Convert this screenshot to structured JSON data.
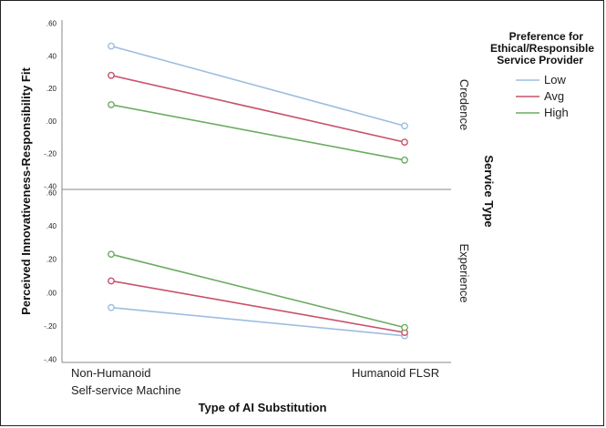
{
  "chart_data": {
    "type": "line",
    "x_title": "Type of AI Substitution",
    "y_title": "Perceived Innovativeness-Responsibility Fit",
    "categories": [
      "Non-Humanoid\nSelf-service Machine",
      "Humanoid FLSR"
    ],
    "panel_title": "Service Type",
    "legend": {
      "title": [
        "Preference for",
        "Ethical/Responsible",
        "Service Provider"
      ],
      "position": "top-right"
    },
    "ylim": [
      -0.42,
      0.62
    ],
    "yticks": [
      0.6,
      0.4,
      0.2,
      0.0,
      -0.2,
      -0.4
    ],
    "ytick_labels": [
      ".60",
      ".40",
      ".20",
      ".00",
      "-.20",
      "-.40"
    ],
    "grid": false,
    "colors": {
      "Low": "#9dbde0",
      "Avg": "#c8506a",
      "High": "#6cab62"
    },
    "panels": [
      {
        "label": "Credence",
        "series": [
          {
            "name": "Low",
            "values": [
              0.46,
              -0.03
            ]
          },
          {
            "name": "Avg",
            "values": [
              0.28,
              -0.13
            ]
          },
          {
            "name": "High",
            "values": [
              0.1,
              -0.24
            ]
          }
        ]
      },
      {
        "label": "Experience",
        "series": [
          {
            "name": "Low",
            "values": [
              -0.09,
              -0.26
            ]
          },
          {
            "name": "Avg",
            "values": [
              0.07,
              -0.24
            ]
          },
          {
            "name": "High",
            "values": [
              0.23,
              -0.21
            ]
          }
        ]
      }
    ]
  }
}
